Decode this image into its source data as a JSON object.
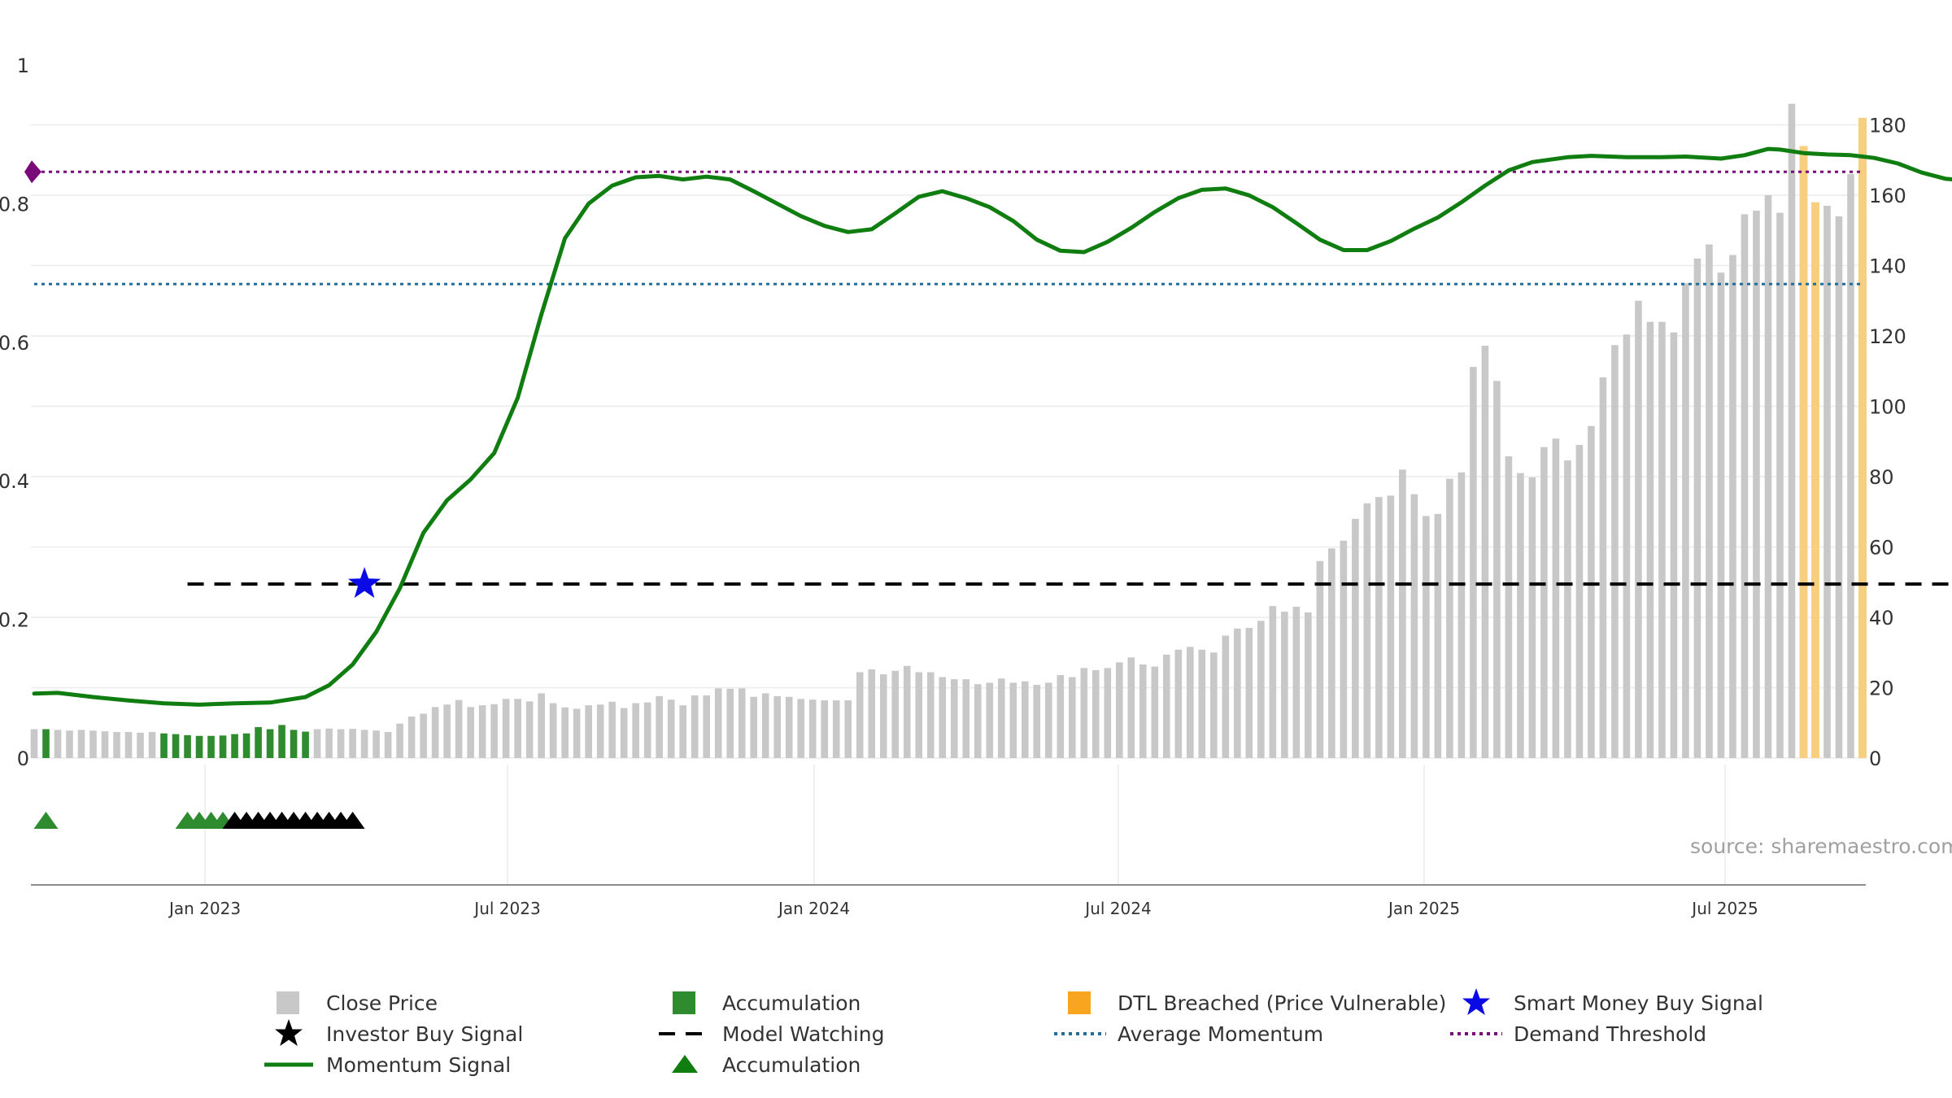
{
  "chart_data": {
    "type": "bar+line",
    "source": "source: sharemaestro.com",
    "x_ticks": [
      "Jan 2023",
      "Jul 2023",
      "Jan 2024",
      "Jul 2024",
      "Jan 2025",
      "Jul 2025"
    ],
    "left_axis": {
      "ticks": [
        "0",
        "0.2",
        "0.4",
        "0.6",
        "0.8",
        "1"
      ],
      "values": [
        0,
        0.2,
        0.4,
        0.6,
        0.8,
        1
      ],
      "range": [
        0,
        1
      ]
    },
    "right_axis": {
      "ticks": [
        "0",
        "20",
        "40",
        "60",
        "80",
        "100",
        "120",
        "140",
        "160",
        "180"
      ],
      "values": [
        0,
        20,
        40,
        60,
        80,
        100,
        120,
        140,
        160,
        180
      ],
      "range": [
        0,
        197
      ]
    },
    "bars": {
      "note": "weekly close price (right axis); index 0 = first week in chart",
      "values": [
        8.2,
        8.2,
        8.0,
        7.8,
        8.0,
        7.8,
        7.6,
        7.4,
        7.4,
        7.2,
        7.4,
        7.0,
        6.8,
        6.5,
        6.3,
        6.3,
        6.4,
        6.8,
        7.0,
        8.8,
        8.2,
        9.4,
        8.0,
        7.5,
        8.2,
        8.4,
        8.2,
        8.3,
        8.0,
        7.8,
        7.4,
        9.8,
        11.8,
        12.6,
        14.5,
        15.2,
        16.5,
        14.5,
        15.0,
        15.3,
        16.8,
        16.8,
        16.1,
        18.4,
        15.6,
        14.4,
        14.0,
        15.0,
        15.2,
        16.0,
        14.2,
        15.6,
        15.8,
        17.6,
        16.6,
        15.0,
        17.8,
        17.8,
        19.8,
        19.7,
        19.8,
        17.4,
        18.4,
        17.6,
        17.4,
        16.8,
        16.6,
        16.4,
        16.4,
        16.4,
        24.4,
        25.2,
        23.8,
        24.8,
        26.2,
        24.4,
        24.4,
        23.0,
        22.4,
        22.4,
        21.0,
        21.4,
        22.6,
        21.4,
        21.8,
        20.8,
        21.4,
        23.6,
        23.0,
        25.6,
        25.0,
        25.6,
        27.2,
        28.6,
        26.6,
        26.0,
        29.4,
        30.8,
        31.6,
        30.8,
        30.0,
        34.8,
        36.8,
        37.0,
        39.0,
        43.2,
        41.6,
        43.0,
        41.4,
        56.0,
        59.6,
        61.8,
        68.0,
        72.4,
        74.2,
        74.6,
        82.0,
        75.0,
        68.8,
        69.4,
        79.4,
        81.2,
        111.2,
        117.2,
        107.2,
        85.8,
        81.0,
        79.8,
        88.4,
        90.8,
        84.6,
        89.0,
        94.4,
        108.2,
        117.4,
        120.4,
        130.0,
        124.0,
        124.0,
        121.0,
        135.0,
        142.0,
        146.0,
        138.0,
        143.0,
        154.6,
        155.6,
        160.0,
        155.0,
        186.0,
        174.0,
        158.0,
        157.0,
        154.0,
        166.0,
        182.0
      ],
      "accumulation_index": [
        1,
        11,
        12,
        13,
        14,
        15,
        16,
        17,
        18,
        19,
        20,
        21,
        22,
        23
      ],
      "dtl_breached_index": [
        150,
        151,
        155,
        156
      ]
    },
    "momentum": [
      [
        0,
        0.093
      ],
      [
        2,
        0.094
      ],
      [
        5,
        0.088
      ],
      [
        8,
        0.083
      ],
      [
        11,
        0.079
      ],
      [
        14,
        0.077
      ],
      [
        17,
        0.079
      ],
      [
        20,
        0.08
      ],
      [
        23,
        0.088
      ],
      [
        25,
        0.105
      ],
      [
        27,
        0.135
      ],
      [
        29,
        0.182
      ],
      [
        31,
        0.245
      ],
      [
        33,
        0.325
      ],
      [
        35,
        0.372
      ],
      [
        37,
        0.402
      ],
      [
        39,
        0.44
      ],
      [
        41,
        0.52
      ],
      [
        43,
        0.64
      ],
      [
        45,
        0.75
      ],
      [
        47,
        0.8
      ],
      [
        49,
        0.826
      ],
      [
        51,
        0.838
      ],
      [
        53,
        0.84
      ],
      [
        55,
        0.835
      ],
      [
        57,
        0.839
      ],
      [
        59,
        0.835
      ],
      [
        61,
        0.818
      ],
      [
        63,
        0.8
      ],
      [
        65,
        0.782
      ],
      [
        67,
        0.768
      ],
      [
        69,
        0.759
      ],
      [
        71,
        0.763
      ],
      [
        73,
        0.786
      ],
      [
        75,
        0.81
      ],
      [
        77,
        0.818
      ],
      [
        79,
        0.808
      ],
      [
        81,
        0.795
      ],
      [
        83,
        0.775
      ],
      [
        85,
        0.748
      ],
      [
        87,
        0.732
      ],
      [
        89,
        0.73
      ],
      [
        91,
        0.745
      ],
      [
        93,
        0.765
      ],
      [
        95,
        0.788
      ],
      [
        97,
        0.808
      ],
      [
        99,
        0.82
      ],
      [
        101,
        0.822
      ],
      [
        103,
        0.812
      ],
      [
        105,
        0.795
      ],
      [
        107,
        0.772
      ],
      [
        109,
        0.748
      ],
      [
        111,
        0.733
      ],
      [
        113,
        0.733
      ],
      [
        115,
        0.746
      ],
      [
        117,
        0.764
      ],
      [
        119,
        0.78
      ],
      [
        121,
        0.802
      ],
      [
        123,
        0.826
      ],
      [
        125,
        0.848
      ],
      [
        127,
        0.86
      ],
      [
        130,
        0.867
      ],
      [
        132,
        0.869
      ],
      [
        135,
        0.867
      ],
      [
        138,
        0.867
      ],
      [
        140,
        0.868
      ],
      [
        143,
        0.865
      ],
      [
        145,
        0.87
      ],
      [
        147,
        0.879
      ],
      [
        148,
        0.878
      ],
      [
        150,
        0.873
      ],
      [
        152,
        0.871
      ],
      [
        154,
        0.87
      ],
      [
        156,
        0.866
      ],
      [
        158,
        0.858
      ],
      [
        160,
        0.845
      ],
      [
        162,
        0.836
      ],
      [
        164,
        0.833
      ],
      [
        166,
        0.836
      ],
      [
        168,
        0.845
      ],
      [
        170,
        0.858
      ],
      [
        172,
        0.866
      ],
      [
        174,
        0.87
      ],
      [
        176,
        0.873
      ],
      [
        178,
        0.874
      ],
      [
        180,
        0.874
      ],
      [
        182,
        0.86
      ],
      [
        183,
        0.872
      ],
      [
        184,
        0.87
      ],
      [
        185,
        0.84
      ],
      [
        186,
        0.838
      ],
      [
        187,
        0.838
      ]
    ],
    "model_watching": {
      "start_index": 13,
      "end_index": 187,
      "value": 0.251
    },
    "average_momentum": 0.684,
    "demand_threshold": 0.846,
    "smart_money_buy_signal": {
      "index": 28,
      "value": 0.251
    },
    "triangle_signals": {
      "accumulation_index": [
        1,
        13,
        14,
        15,
        16
      ],
      "investor_buy_index": [
        17,
        18,
        19,
        20,
        21,
        22,
        23,
        24,
        25,
        26,
        27
      ]
    },
    "legend": [
      {
        "key": "close_price",
        "label": "Close Price"
      },
      {
        "key": "accumulation_bar",
        "label": "Accumulation"
      },
      {
        "key": "dtl_breached",
        "label": "DTL Breached (Price Vulnerable)"
      },
      {
        "key": "smart_money",
        "label": "Smart Money Buy Signal"
      },
      {
        "key": "investor_buy",
        "label": "Investor Buy Signal"
      },
      {
        "key": "model_watching",
        "label": "Model Watching"
      },
      {
        "key": "average_momentum",
        "label": "Average Momentum"
      },
      {
        "key": "demand_threshold",
        "label": "Demand Threshold"
      },
      {
        "key": "momentum_signal",
        "label": "Momentum Signal"
      },
      {
        "key": "accumulation_triangle",
        "label": "Accumulation"
      }
    ]
  },
  "colors": {
    "close_price": "#c8c8c8",
    "accumulation": "#2e8b2e",
    "dtl": "#f8cf80",
    "momentum": "#0f7d0f",
    "average_momentum": "#1f6e9c",
    "demand_threshold": "#7a0a7a",
    "smart_money": "#0a0ae6",
    "investor_buy": "#000000",
    "model_watching": "#000000",
    "source_text": "#a0a0a0"
  }
}
